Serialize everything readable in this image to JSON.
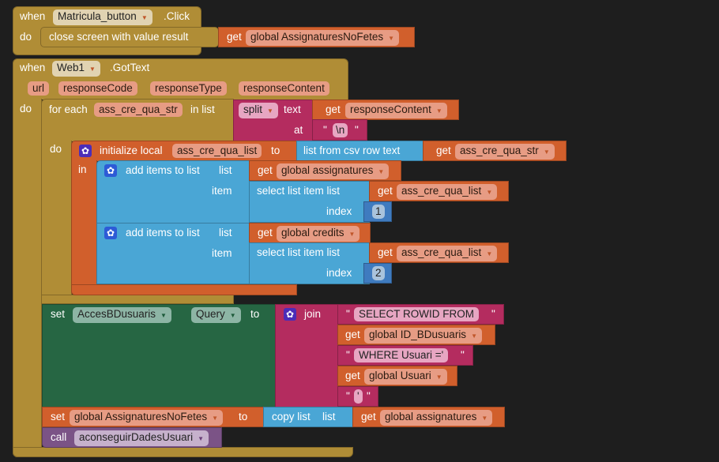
{
  "block1": {
    "when": "when",
    "component": "Matricula_button",
    "event": ".Click",
    "do": "do",
    "statement": "close screen with value  result",
    "get": "get",
    "var": "global AssignaturesNoFetes"
  },
  "block2": {
    "when": "when",
    "component": "Web1",
    "event": ".GotText",
    "params": [
      "url",
      "responseCode",
      "responseType",
      "responseContent"
    ],
    "do": "do",
    "foreach": {
      "label": "for each",
      "var": "ass_cre_qua_str",
      "in_list": "in list",
      "do": "do"
    },
    "split": {
      "op": "split",
      "text": "text",
      "at": "at",
      "get": "get",
      "var": "responseContent",
      "sep": "\\n"
    },
    "init": {
      "label": "initialize local",
      "var": "ass_cre_qua_list",
      "to": "to",
      "in": "in",
      "csv": "list from csv row  text",
      "get": "get",
      "src": "ass_cre_qua_str"
    },
    "add1": {
      "label": "add items to list",
      "list": "list",
      "item": "item",
      "get": "get",
      "target": "global assignatures",
      "select": "select list item  list",
      "index": "index",
      "src": "ass_cre_qua_list",
      "n": "1"
    },
    "add2": {
      "label": "add items to list",
      "list": "list",
      "item": "item",
      "get": "get",
      "target": "global credits",
      "select": "select list item  list",
      "index": "index",
      "src": "ass_cre_qua_list",
      "n": "2"
    },
    "setq": {
      "set": "set",
      "component": "AccesBDusuaris",
      "dot": ".",
      "prop": "Query",
      "to": "to",
      "join": "join",
      "s1": "SELECT ROWID FROM",
      "g1": "global ID_BDusuaris",
      "s2": "WHERE Usuari ='",
      "g2": "global Usuari",
      "s3": "'",
      "get": "get"
    },
    "setg": {
      "set": "set",
      "var": "global AssignaturesNoFetes",
      "to": "to",
      "copy": "copy list",
      "list": "list",
      "get": "get",
      "src": "global assignatures"
    },
    "call": {
      "call": "call",
      "proc": "aconseguirDadesUsuari"
    }
  }
}
